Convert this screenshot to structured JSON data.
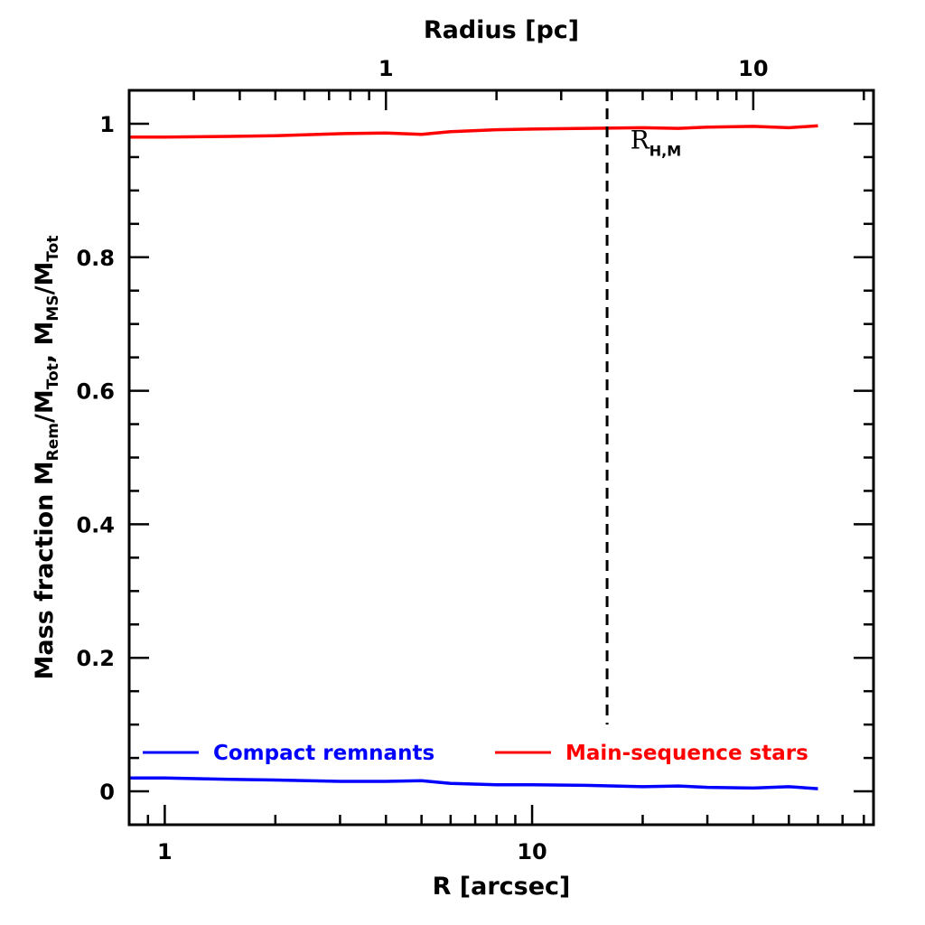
{
  "chart_data": {
    "type": "line",
    "xlabel": "R [arcsec]",
    "x2label": "Radius [pc]",
    "ylabel": "Mass fraction   M",
    "ylabel_parts": {
      "p1": "Mass fraction   M",
      "s1": "Rem",
      "p2": "/M",
      "s2": "Tot",
      "p3": ", M",
      "s3": "MS",
      "p4": "/M",
      "s4": "Tot"
    },
    "x_scale": "log",
    "xlim": [
      0.8,
      85
    ],
    "ylim": [
      -0.05,
      1.05
    ],
    "x_ticks": [
      1,
      10
    ],
    "x_tick_labels": [
      "1",
      "10"
    ],
    "x2_ticks": [
      1,
      10
    ],
    "x2_tick_labels": [
      "1",
      "10"
    ],
    "x2_to_x_factor": 4.0,
    "y_ticks": [
      0,
      0.2,
      0.4,
      0.6,
      0.8,
      1
    ],
    "y_tick_labels": [
      "0",
      "0.2",
      "0.4",
      "0.6",
      "0.8",
      "1"
    ],
    "series": [
      {
        "name": "Compact remnants",
        "color": "#0000ff",
        "x": [
          0.8,
          1.0,
          1.5,
          2.0,
          3.0,
          4.0,
          5.0,
          6.0,
          8.0,
          10.0,
          14.0,
          20.0,
          25.0,
          30.0,
          40.0,
          50.0,
          60.0
        ],
        "y": [
          0.02,
          0.02,
          0.018,
          0.017,
          0.015,
          0.015,
          0.016,
          0.012,
          0.01,
          0.01,
          0.009,
          0.007,
          0.008,
          0.006,
          0.005,
          0.007,
          0.004
        ]
      },
      {
        "name": "Main-sequence stars",
        "color": "#ff0000",
        "x": [
          0.8,
          1.0,
          1.5,
          2.0,
          3.0,
          4.0,
          5.0,
          6.0,
          8.0,
          10.0,
          14.0,
          20.0,
          25.0,
          30.0,
          40.0,
          50.0,
          60.0
        ],
        "y": [
          0.98,
          0.98,
          0.981,
          0.982,
          0.985,
          0.986,
          0.984,
          0.988,
          0.991,
          0.992,
          0.993,
          0.994,
          0.993,
          0.995,
          0.996,
          0.994,
          0.997
        ]
      }
    ],
    "vline": {
      "x": 16.0,
      "style": "dashed",
      "color": "#000000",
      "ymin": 0.1,
      "ymax": 1.05
    },
    "annotation": {
      "text": "R",
      "sub": "H,M",
      "x": 18.5,
      "y": 0.99
    },
    "legend": {
      "placement": "bottom",
      "entries": [
        "Compact remnants",
        "Main-sequence stars"
      ]
    }
  }
}
